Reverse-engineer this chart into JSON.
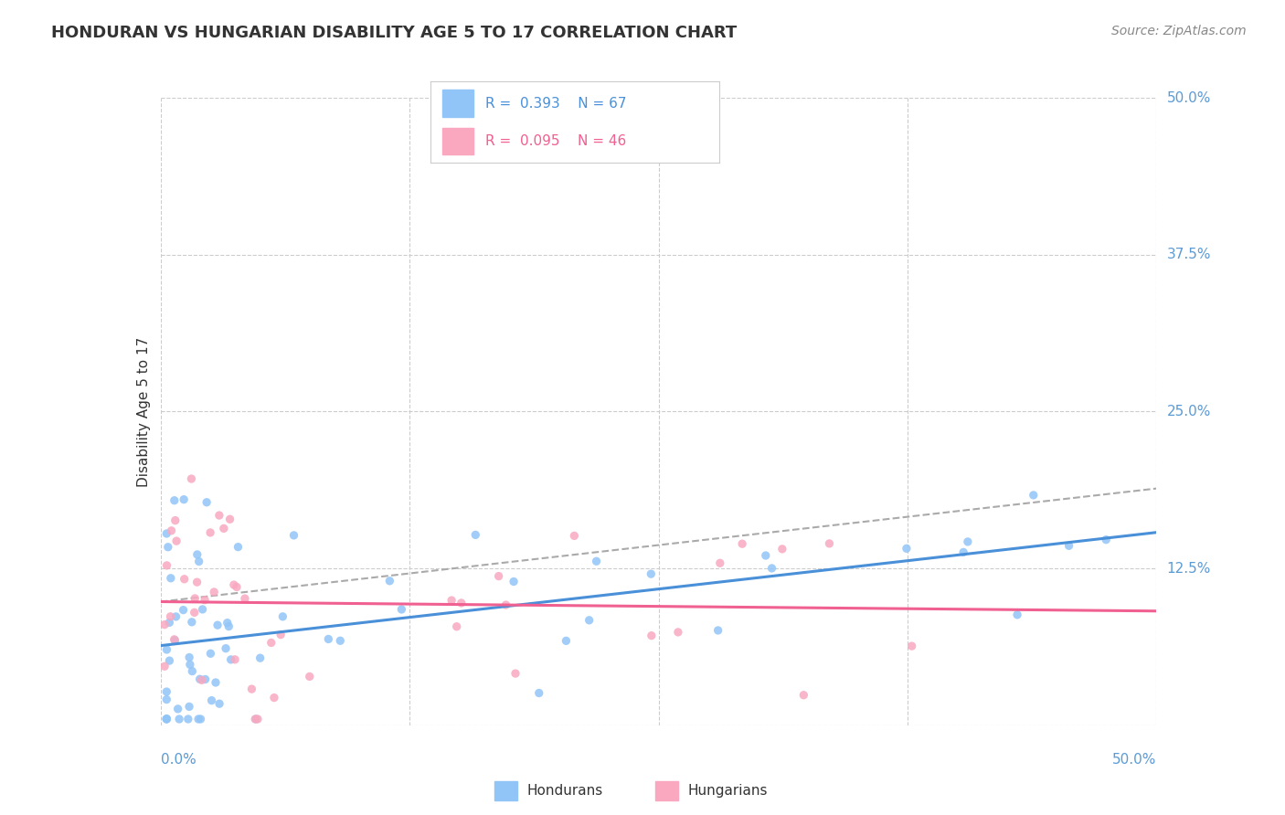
{
  "title": "HONDURAN VS HUNGARIAN DISABILITY AGE 5 TO 17 CORRELATION CHART",
  "source": "Source: ZipAtlas.com",
  "ylabel": "Disability Age 5 to 17",
  "xlim": [
    0.0,
    50.0
  ],
  "ylim": [
    0.0,
    50.0
  ],
  "yticks": [
    0.0,
    12.5,
    25.0,
    37.5,
    50.0
  ],
  "xticks": [
    0.0,
    12.5,
    25.0,
    37.5,
    50.0
  ],
  "honduran_color": "#92C5F7",
  "hungarian_color": "#F9A8C0",
  "honduran_line_color": "#4A90D9",
  "hungarian_line_color": "#F06090",
  "honduran_R": 0.393,
  "honduran_N": 67,
  "hungarian_R": 0.095,
  "hungarian_N": 46,
  "legend_label_1": "Hondurans",
  "legend_label_2": "Hungarians",
  "background_color": "#ffffff",
  "grid_color": "#cccccc",
  "axis_label_color": "#5B9BD5",
  "title_color": "#333333",
  "source_color": "#888888"
}
